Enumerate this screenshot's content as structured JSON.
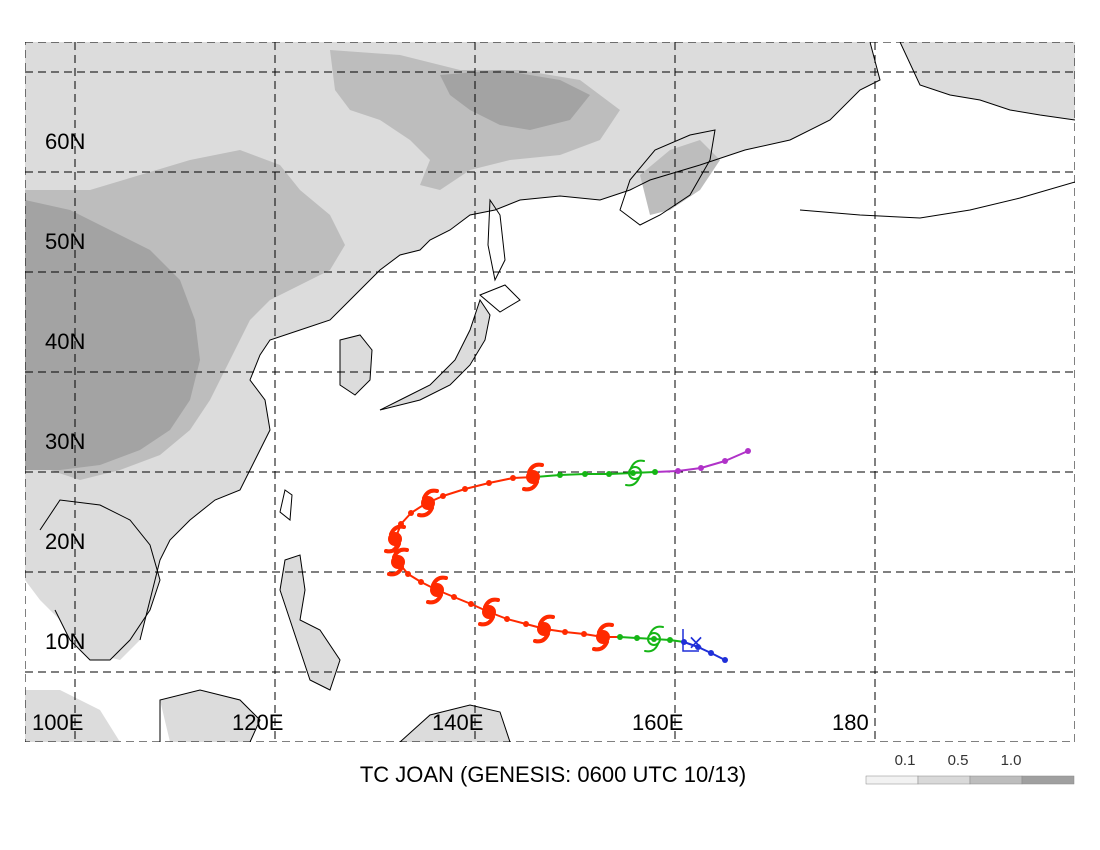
{
  "title": "TC JOAN (GENESIS: 0600 UTC 10/13)",
  "lat_labels": [
    "60N",
    "50N",
    "40N",
    "30N",
    "20N",
    "10N"
  ],
  "lon_labels": [
    "100E",
    "120E",
    "140E",
    "160E",
    "180"
  ],
  "map_extent": {
    "lon_min": 100,
    "lon_max": 205,
    "lat_min": 3,
    "lat_max": 73
  },
  "grid": {
    "lons": [
      105,
      125,
      145,
      165,
      185
    ],
    "lats": [
      10,
      20,
      30,
      40,
      50,
      60,
      70
    ]
  },
  "legend": {
    "labels": [
      "0.1",
      "0.5",
      "1.0"
    ],
    "colors": [
      "#f2f2f2",
      "#d9d9d9",
      "#bdbdbd",
      "#a0a0a0"
    ]
  },
  "terrain_colors": {
    "light": "#dcdcdc",
    "medium": "#bdbdbd",
    "dark": "#a3a3a3"
  },
  "track_colors": {
    "depression": "#1f2fd8",
    "storm": "#16b516",
    "typhoon": "#ff2a00",
    "extratropical": "#b032c8"
  },
  "genesis_marker": {
    "symbol": "×",
    "lon": 166.8,
    "lat": 12.9
  },
  "track": [
    {
      "lon": 170.0,
      "lat": 11.2,
      "stage": "depression"
    },
    {
      "lon": 168.6,
      "lat": 11.9,
      "stage": "depression"
    },
    {
      "lon": 167.3,
      "lat": 12.5,
      "stage": "depression"
    },
    {
      "lon": 165.9,
      "lat": 13.0,
      "stage": "depression"
    },
    {
      "lon": 164.5,
      "lat": 13.2,
      "stage": "storm"
    },
    {
      "lon": 162.9,
      "lat": 13.3,
      "stage": "storm"
    },
    {
      "lon": 161.2,
      "lat": 13.4,
      "stage": "storm"
    },
    {
      "lon": 159.5,
      "lat": 13.5,
      "stage": "storm"
    },
    {
      "lon": 157.8,
      "lat": 13.5,
      "stage": "typhoon"
    },
    {
      "lon": 155.9,
      "lat": 13.8,
      "stage": "typhoon"
    },
    {
      "lon": 154.0,
      "lat": 14.0,
      "stage": "typhoon"
    },
    {
      "lon": 152.0,
      "lat": 14.3,
      "stage": "typhoon"
    },
    {
      "lon": 150.1,
      "lat": 14.8,
      "stage": "typhoon"
    },
    {
      "lon": 148.2,
      "lat": 15.3,
      "stage": "typhoon"
    },
    {
      "lon": 146.4,
      "lat": 16.0,
      "stage": "typhoon"
    },
    {
      "lon": 144.6,
      "lat": 16.8,
      "stage": "typhoon"
    },
    {
      "lon": 142.9,
      "lat": 17.5,
      "stage": "typhoon"
    },
    {
      "lon": 141.2,
      "lat": 18.2,
      "stage": "typhoon"
    },
    {
      "lon": 139.6,
      "lat": 19.0,
      "stage": "typhoon"
    },
    {
      "lon": 138.3,
      "lat": 19.8,
      "stage": "typhoon"
    },
    {
      "lon": 137.3,
      "lat": 21.0,
      "stage": "typhoon"
    },
    {
      "lon": 137.0,
      "lat": 22.2,
      "stage": "typhoon"
    },
    {
      "lon": 137.1,
      "lat": 23.5,
      "stage": "typhoon"
    },
    {
      "lon": 137.6,
      "lat": 24.8,
      "stage": "typhoon"
    },
    {
      "lon": 138.6,
      "lat": 25.9,
      "stage": "typhoon"
    },
    {
      "lon": 140.0,
      "lat": 26.8,
      "stage": "typhoon"
    },
    {
      "lon": 141.8,
      "lat": 27.6,
      "stage": "typhoon"
    },
    {
      "lon": 144.0,
      "lat": 28.3,
      "stage": "typhoon"
    },
    {
      "lon": 146.4,
      "lat": 28.9,
      "stage": "typhoon"
    },
    {
      "lon": 148.8,
      "lat": 29.4,
      "stage": "typhoon"
    },
    {
      "lon": 151.0,
      "lat": 29.5,
      "stage": "typhoon"
    },
    {
      "lon": 153.5,
      "lat": 29.7,
      "stage": "storm"
    },
    {
      "lon": 156.0,
      "lat": 29.8,
      "stage": "storm"
    },
    {
      "lon": 158.4,
      "lat": 29.8,
      "stage": "storm"
    },
    {
      "lon": 160.8,
      "lat": 29.9,
      "stage": "storm"
    },
    {
      "lon": 163.0,
      "lat": 30.0,
      "stage": "storm"
    },
    {
      "lon": 165.3,
      "lat": 30.1,
      "stage": "extratropical"
    },
    {
      "lon": 167.6,
      "lat": 30.4,
      "stage": "extratropical"
    },
    {
      "lon": 170.0,
      "lat": 31.1,
      "stage": "extratropical"
    },
    {
      "lon": 172.3,
      "lat": 32.1,
      "stage": "extratropical"
    }
  ],
  "symbols": [
    {
      "lon": 162.9,
      "lat": 13.3,
      "type": "storm-symbol"
    },
    {
      "lon": 157.8,
      "lat": 13.5,
      "type": "typhoon-symbol"
    },
    {
      "lon": 151.9,
      "lat": 14.3,
      "type": "typhoon-symbol"
    },
    {
      "lon": 146.4,
      "lat": 16.0,
      "type": "typhoon-symbol"
    },
    {
      "lon": 141.2,
      "lat": 18.2,
      "type": "typhoon-symbol"
    },
    {
      "lon": 137.3,
      "lat": 21.0,
      "type": "typhoon-symbol"
    },
    {
      "lon": 137.0,
      "lat": 23.3,
      "type": "typhoon-symbol"
    },
    {
      "lon": 140.3,
      "lat": 26.9,
      "type": "typhoon-symbol"
    },
    {
      "lon": 150.8,
      "lat": 29.5,
      "type": "typhoon-symbol"
    },
    {
      "lon": 161.0,
      "lat": 29.9,
      "type": "storm-symbol"
    }
  ]
}
